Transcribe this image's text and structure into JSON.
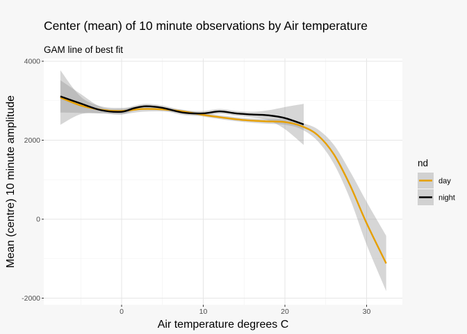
{
  "chart_data": {
    "type": "line",
    "title": "Center (mean) of 10 minute observations by Air temperature",
    "subtitle": "GAM line of best fit",
    "xlabel": "Air temperature degrees C",
    "ylabel": "Mean (centre) 10 minute amplitude",
    "xlim": [
      -9.5,
      34.5
    ],
    "ylim": [
      -2050,
      4000
    ],
    "xticks": [
      0,
      10,
      20,
      30
    ],
    "yticks": [
      -2000,
      0,
      2000,
      4000
    ],
    "grid": true,
    "legend": {
      "title": "nd",
      "position": "right"
    },
    "series": [
      {
        "name": "day",
        "color": "#e69f00",
        "x": [
          -7.5,
          -5,
          -2.5,
          0,
          2.5,
          5,
          7.5,
          10,
          12.5,
          15,
          17.5,
          20,
          22,
          24,
          26,
          28,
          30,
          32.4
        ],
        "y": [
          3080,
          2880,
          2770,
          2740,
          2790,
          2780,
          2730,
          2640,
          2570,
          2510,
          2480,
          2460,
          2360,
          2130,
          1640,
          850,
          -100,
          -1120
        ],
        "lower": [
          2390,
          2660,
          2680,
          2660,
          2720,
          2730,
          2690,
          2600,
          2520,
          2460,
          2420,
          2390,
          2280,
          1980,
          1400,
          500,
          -640,
          -1820
        ],
        "upper": [
          3770,
          3100,
          2860,
          2820,
          2860,
          2830,
          2770,
          2680,
          2620,
          2560,
          2540,
          2530,
          2440,
          2280,
          1880,
          1200,
          440,
          -420
        ]
      },
      {
        "name": "night",
        "color": "#000000",
        "x": [
          -7.5,
          -5,
          -2.5,
          0,
          1.5,
          3,
          5,
          7.5,
          10,
          12,
          14,
          16,
          18,
          20,
          22.3
        ],
        "y": [
          3110,
          2930,
          2760,
          2720,
          2810,
          2860,
          2820,
          2700,
          2680,
          2730,
          2680,
          2650,
          2630,
          2560,
          2400
        ],
        "lower": [
          2700,
          2690,
          2680,
          2650,
          2750,
          2800,
          2760,
          2640,
          2620,
          2670,
          2620,
          2580,
          2500,
          2280,
          1880
        ],
        "upper": [
          3520,
          3170,
          2840,
          2790,
          2870,
          2920,
          2880,
          2760,
          2740,
          2790,
          2740,
          2720,
          2760,
          2840,
          2920
        ]
      }
    ]
  }
}
